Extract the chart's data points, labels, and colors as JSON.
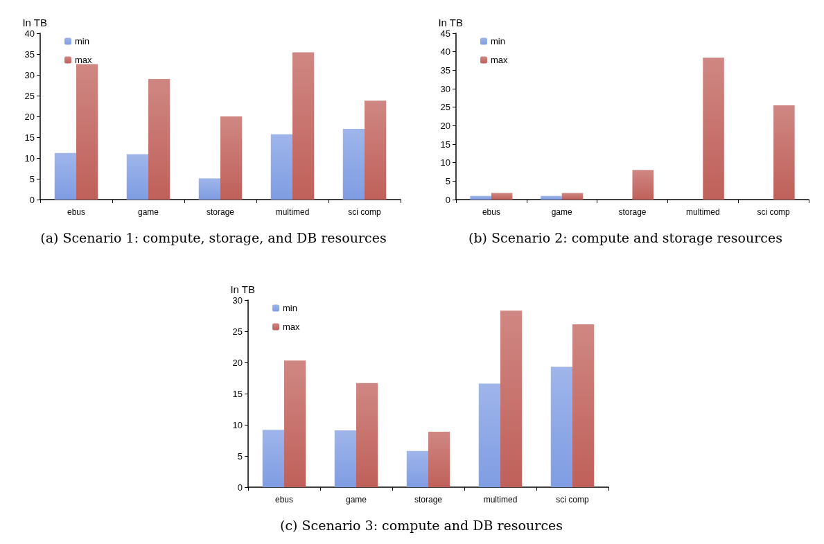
{
  "chart_data": [
    {
      "type": "bar",
      "title": "(a) Scenario 1: compute, storage, and DB resources",
      "ylabel": "In TB",
      "categories": [
        "ebus",
        "game",
        "storage",
        "multimed",
        "sci comp"
      ],
      "series": [
        {
          "name": "min",
          "color": "#7f9de3",
          "values": [
            11.2,
            10.9,
            5.1,
            15.7,
            17.0
          ]
        },
        {
          "name": "max",
          "color": "#c0605a",
          "values": [
            32.6,
            29.0,
            20.0,
            35.4,
            23.8
          ]
        }
      ],
      "ylim": [
        0,
        40
      ],
      "yticks": [
        0,
        5,
        10,
        15,
        20,
        25,
        30,
        35,
        40
      ],
      "grid": false,
      "legend": "top left"
    },
    {
      "type": "bar",
      "title": "(b) Scenario 2: compute and storage resources",
      "ylabel": "In TB",
      "categories": [
        "ebus",
        "game",
        "storage",
        "multimed",
        "sci comp"
      ],
      "series": [
        {
          "name": "min",
          "color": "#7f9de3",
          "values": [
            1,
            1,
            0,
            0,
            0
          ]
        },
        {
          "name": "max",
          "color": "#c0605a",
          "values": [
            1.8,
            1.8,
            8.0,
            38.4,
            25.5
          ]
        }
      ],
      "ylim": [
        0,
        45
      ],
      "yticks": [
        0,
        5,
        10,
        15,
        20,
        25,
        30,
        35,
        40,
        45
      ],
      "grid": false,
      "legend": "top left"
    },
    {
      "type": "bar",
      "title": "(c) Scenario 3: compute and DB resources",
      "ylabel": "In TB",
      "categories": [
        "ebus",
        "game",
        "storage",
        "multimed",
        "sci comp"
      ],
      "series": [
        {
          "name": "min",
          "color": "#7f9de3",
          "values": [
            9.2,
            9.1,
            5.8,
            16.6,
            19.3
          ]
        },
        {
          "name": "max",
          "color": "#c0605a",
          "values": [
            20.3,
            16.7,
            8.9,
            28.3,
            26.1
          ]
        }
      ],
      "ylim": [
        0,
        30
      ],
      "yticks": [
        0,
        5,
        10,
        15,
        20,
        25,
        30
      ],
      "grid": false,
      "legend": "top left"
    }
  ]
}
